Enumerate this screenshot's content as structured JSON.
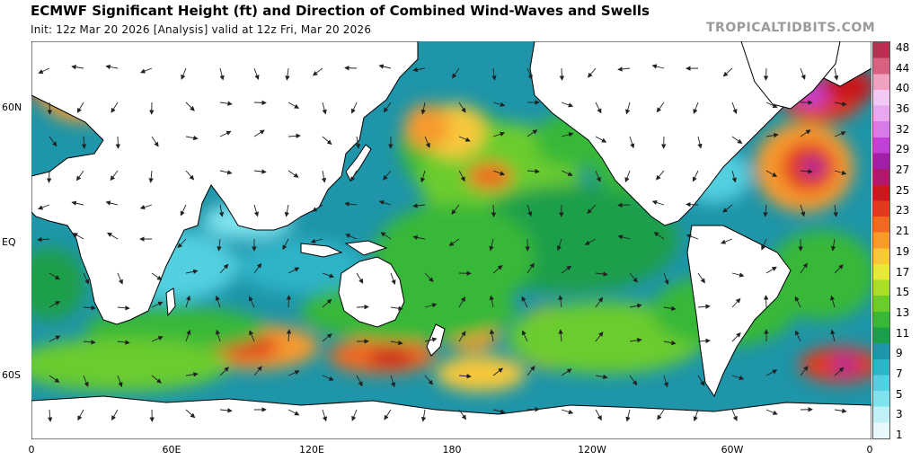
{
  "header": {
    "title": "ECMWF Significant Height (ft) and Direction of Combined Wind-Waves and Swells",
    "subtitle": "Init: 12z Mar 20 2026   [Analysis]   valid at 12z Fri, Mar 20 2026",
    "credit": "TROPICALTIDBITS.COM"
  },
  "axes": {
    "lat_labels": [
      "60N",
      "EQ",
      "60S"
    ],
    "lon_labels": [
      "0",
      "60E",
      "120E",
      "180",
      "120W",
      "60W",
      "0"
    ]
  },
  "colorbar": {
    "labels": [
      "48",
      "44",
      "40",
      "36",
      "32",
      "29",
      "27",
      "25",
      "23",
      "21",
      "19",
      "17",
      "15",
      "13",
      "11",
      "9",
      "7",
      "5",
      "3",
      "1"
    ],
    "colors": [
      "#e8f9fb",
      "#bff1f6",
      "#7fe3ee",
      "#52cfe0",
      "#2eb3c7",
      "#1e95a8",
      "#1a9f4a",
      "#37b837",
      "#6bcc2e",
      "#a9dc2b",
      "#e8e83a",
      "#f7c83a",
      "#f79a2e",
      "#f06a22",
      "#e23a1e",
      "#c9181e",
      "#b01a6e",
      "#a020a8",
      "#c040d8",
      "#d87ae8",
      "#e8a8f0",
      "#f2c8f5",
      "#f0a0c0",
      "#d86080",
      "#b83050"
    ]
  },
  "map_colors": {
    "ocean_base": "#1e95a8",
    "land": "#ffffff",
    "coast": "#000000"
  }
}
